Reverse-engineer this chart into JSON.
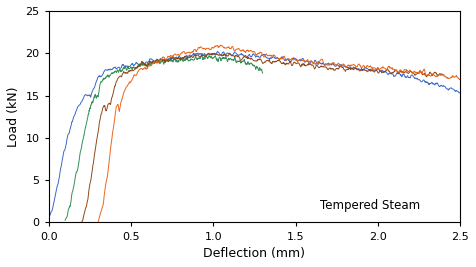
{
  "xlabel": "Deflection (mm)",
  "ylabel": "Load (kN)",
  "annotation": "Tempered Steam",
  "xlim": [
    0,
    2.5
  ],
  "ylim": [
    0,
    25
  ],
  "xticks": [
    0.0,
    0.5,
    1.0,
    1.5,
    2.0,
    2.5
  ],
  "yticks": [
    0,
    5,
    10,
    15,
    20,
    25
  ],
  "curves": {
    "blue": {
      "color": "#3060c8",
      "x": [
        0.0,
        0.03,
        0.06,
        0.09,
        0.12,
        0.15,
        0.18,
        0.2,
        0.22,
        0.24,
        0.25,
        0.255,
        0.26,
        0.265,
        0.27,
        0.275,
        0.28,
        0.29,
        0.3,
        0.35,
        0.4,
        0.5,
        0.6,
        0.7,
        0.8,
        0.9,
        1.0,
        1.05,
        1.1,
        1.2,
        1.4,
        1.6,
        1.8,
        2.0,
        2.2,
        2.5
      ],
      "y": [
        0.0,
        2.0,
        5.0,
        8.0,
        10.5,
        12.5,
        13.8,
        14.5,
        15.0,
        15.2,
        15.1,
        14.8,
        15.0,
        15.3,
        15.5,
        15.8,
        16.0,
        16.5,
        17.0,
        17.8,
        18.2,
        18.6,
        19.0,
        19.3,
        19.6,
        19.8,
        20.0,
        20.05,
        20.0,
        19.8,
        19.4,
        19.0,
        18.5,
        18.0,
        17.2,
        15.5
      ]
    },
    "green": {
      "color": "#2a8a50",
      "x": [
        0.1,
        0.13,
        0.16,
        0.19,
        0.22,
        0.25,
        0.27,
        0.28,
        0.285,
        0.29,
        0.295,
        0.3,
        0.305,
        0.31,
        0.315,
        0.32,
        0.33,
        0.36,
        0.4,
        0.5,
        0.6,
        0.7,
        0.8,
        0.9,
        1.0,
        1.05,
        1.1,
        1.15,
        1.2,
        1.25,
        1.3
      ],
      "y": [
        0.0,
        2.0,
        5.0,
        8.0,
        11.0,
        13.5,
        14.5,
        15.0,
        14.8,
        14.5,
        14.8,
        15.0,
        15.5,
        16.0,
        16.2,
        16.5,
        16.8,
        17.2,
        17.8,
        18.3,
        18.7,
        19.0,
        19.2,
        19.4,
        19.5,
        19.4,
        19.3,
        19.1,
        18.9,
        18.5,
        17.8
      ]
    },
    "brown": {
      "color": "#8b4010",
      "x": [
        0.2,
        0.23,
        0.26,
        0.29,
        0.31,
        0.33,
        0.34,
        0.345,
        0.35,
        0.355,
        0.36,
        0.365,
        0.37,
        0.375,
        0.38,
        0.39,
        0.4,
        0.42,
        0.45,
        0.5,
        0.55,
        0.6,
        0.65,
        0.7,
        0.75,
        0.8,
        0.9,
        1.0,
        1.1,
        1.2,
        1.4,
        1.6,
        1.8,
        2.0,
        2.2,
        2.4
      ],
      "y": [
        0.0,
        2.0,
        5.5,
        9.5,
        12.0,
        13.5,
        13.8,
        13.5,
        13.2,
        13.5,
        13.8,
        14.0,
        14.3,
        14.0,
        14.5,
        15.2,
        16.0,
        16.8,
        17.5,
        18.0,
        18.5,
        18.8,
        19.0,
        19.2,
        19.4,
        19.5,
        19.7,
        19.9,
        19.7,
        19.4,
        18.9,
        18.5,
        18.2,
        17.9,
        17.7,
        17.5
      ]
    },
    "orange": {
      "color": "#e86010",
      "x": [
        0.3,
        0.33,
        0.36,
        0.39,
        0.41,
        0.42,
        0.425,
        0.43,
        0.435,
        0.44,
        0.45,
        0.47,
        0.5,
        0.55,
        0.6,
        0.65,
        0.7,
        0.75,
        0.8,
        0.9,
        1.0,
        1.05,
        1.1,
        1.15,
        1.2,
        1.25,
        1.3,
        1.4,
        1.5,
        1.7,
        1.9,
        2.1,
        2.3,
        2.5
      ],
      "y": [
        0.0,
        2.0,
        6.0,
        11.0,
        13.5,
        14.0,
        13.5,
        13.0,
        13.5,
        14.0,
        15.0,
        16.0,
        17.0,
        17.8,
        18.5,
        18.9,
        19.3,
        19.7,
        20.0,
        20.4,
        20.7,
        20.8,
        20.7,
        20.5,
        20.3,
        20.1,
        19.9,
        19.5,
        19.2,
        18.8,
        18.5,
        18.1,
        17.6,
        17.0
      ]
    }
  }
}
